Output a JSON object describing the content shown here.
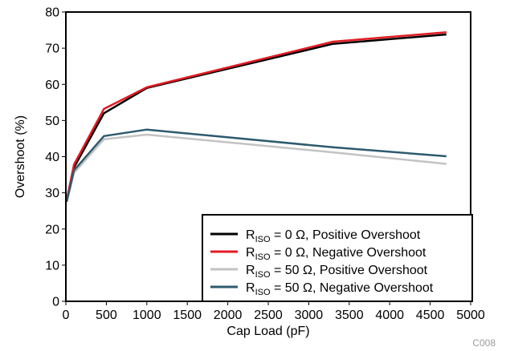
{
  "chart_data": {
    "type": "line",
    "title": "",
    "xlabel": "Cap Load (pF)",
    "ylabel": "Overshoot (%)",
    "xlim": [
      0,
      5000
    ],
    "ylim": [
      0,
      80
    ],
    "x_ticks": [
      0,
      500,
      1000,
      1500,
      2000,
      2500,
      3000,
      3500,
      4000,
      4500,
      5000
    ],
    "y_ticks": [
      0,
      10,
      20,
      30,
      40,
      50,
      60,
      70,
      80
    ],
    "grid": false,
    "legend_position": "bottom-right",
    "corner_tag": "C008",
    "series": [
      {
        "name": "RISO = 0 Ω, Positive Overshoot",
        "legend_main": "R",
        "legend_sub": "ISO",
        "legend_rest": " = 0 Ω, Positive Overshoot",
        "color": "#000000",
        "x": [
          10,
          100,
          470,
          1000,
          3300,
          4700
        ],
        "y": [
          27.5,
          37,
          52,
          59,
          71.2,
          73.8
        ]
      },
      {
        "name": "RISO = 0 Ω, Negative Overshoot",
        "legend_main": "R",
        "legend_sub": "ISO",
        "legend_rest": " = 0 Ω, Negative Overshoot",
        "color": "#e31b23",
        "x": [
          10,
          100,
          470,
          1000,
          3300,
          4700
        ],
        "y": [
          28,
          37.8,
          53.2,
          59.2,
          71.8,
          74.4
        ]
      },
      {
        "name": "RISO = 50 Ω, Positive Overshoot",
        "legend_main": "R",
        "legend_sub": "ISO",
        "legend_rest": " = 50 Ω, Positive Overshoot",
        "color": "#c3c3c3",
        "x": [
          10,
          100,
          470,
          1000,
          3300,
          4700
        ],
        "y": [
          27.5,
          35.5,
          44.8,
          46.1,
          41.2,
          38.0
        ]
      },
      {
        "name": "RISO = 50 Ω, Negative Overshoot",
        "legend_main": "R",
        "legend_sub": "ISO",
        "legend_rest": " = 50 Ω, Negative Overshoot",
        "color": "#2d5a6e",
        "x": [
          10,
          100,
          470,
          1000,
          3300,
          4700
        ],
        "y": [
          27.5,
          36.2,
          45.7,
          47.5,
          42.6,
          40.1
        ]
      }
    ]
  }
}
